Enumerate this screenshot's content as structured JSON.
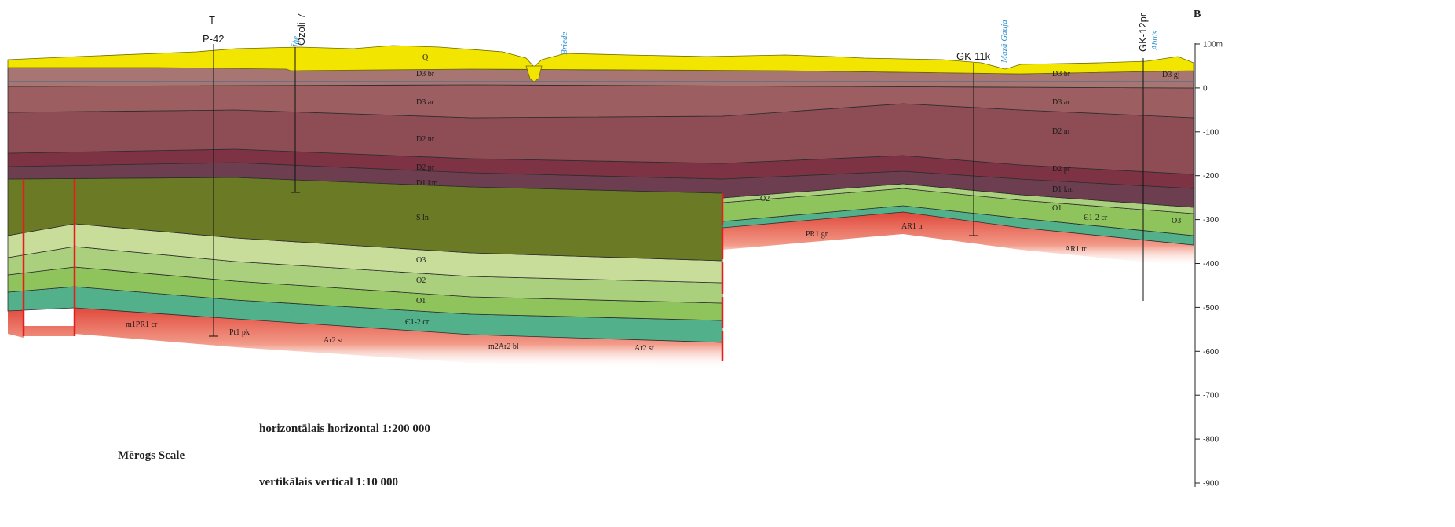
{
  "corner_letter": "B",
  "wells": [
    {
      "name": "P-42",
      "symbol": "T"
    },
    {
      "name": "Ozoli-7"
    },
    {
      "name": "GK-11k"
    },
    {
      "name": "GK-12pr"
    }
  ],
  "rivers": [
    "Īģe",
    "Briede",
    "Mazā Gauja",
    "Abuls"
  ],
  "layer_labels": {
    "q": "Q",
    "br": "D3 br",
    "ar": "D3 ar",
    "nr": "D2 nr",
    "pr": "D2 pr",
    "km": "D1 km",
    "sln": "S ln",
    "o3": "O3",
    "o2": "O2",
    "o1": "O1",
    "cr": "Є1-2 cr",
    "o2_east": "O2",
    "o1_east": "O1",
    "cr_east": "Є1-2 cr",
    "o3_east": "O3",
    "gj_east": "D3 gj"
  },
  "basement_labels": {
    "m1": "m1PR1 cr",
    "ptpk": "Pt1 pk",
    "arst1": "Ar2 st",
    "m2": "m2Ar2 bl",
    "arst2": "Ar2 st",
    "prgr": "PR1 gr",
    "artr1": "AR1 tr",
    "artr2": "AR1 tr"
  },
  "depth_axis": {
    "ticks": [
      "100m",
      "0",
      "-100",
      "-200",
      "-300",
      "-400",
      "-500",
      "-600",
      "-700",
      "-800",
      "-900"
    ],
    "max": 100,
    "min": -900
  },
  "scale": {
    "label": "Mērogs  Scale",
    "horizontal": "horizontālais  horizontal   1:200 000",
    "vertical": "vertikālais  vertical   1:10 000"
  },
  "colors": {
    "quaternary": "#f2e500",
    "br": "#a77572",
    "ar": "#9c5e60",
    "nr": "#8e4c55",
    "pr": "#7e3345",
    "km": "#6c3e4f",
    "silurian": "#6b7a25",
    "o3": "#c9dd9a",
    "o2": "#aad07e",
    "o1": "#8fc45c",
    "cambrian": "#52b08a",
    "basement": "#e05a4a",
    "fault": "#e51d1d",
    "river": "#2a8fd0"
  }
}
